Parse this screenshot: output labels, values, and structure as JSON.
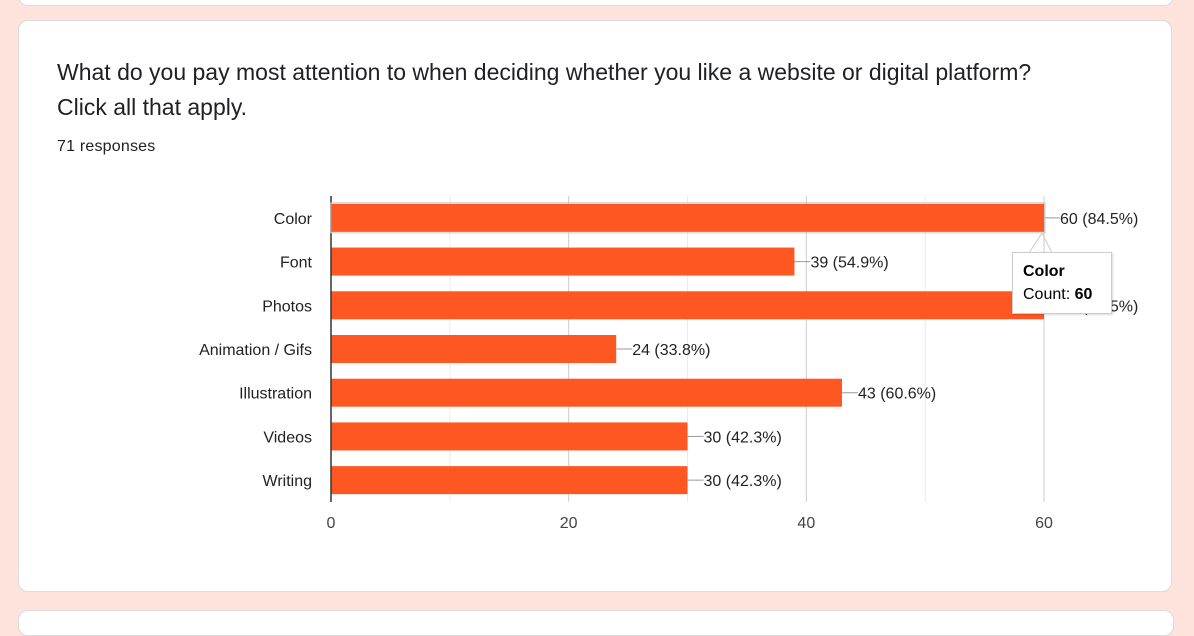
{
  "question": "What do you pay most attention to when deciding whether you like a website or digital platform? Click all that apply.",
  "responses": "71 responses",
  "chart_data": {
    "type": "bar",
    "orientation": "horizontal",
    "categories": [
      "Color",
      "Font",
      "Photos",
      "Animation / Gifs",
      "Illustration",
      "Videos",
      "Writing"
    ],
    "values": [
      60,
      39,
      60,
      24,
      43,
      30,
      30
    ],
    "value_labels": [
      "60 (84.5%)",
      "39 (54.9%)",
      "60 (84.5%)",
      "24 (33.8%)",
      "43 (60.6%)",
      "30 (42.3%)",
      "30 (42.3%)"
    ],
    "xlim": [
      0,
      60
    ],
    "xticks": [
      0,
      20,
      40,
      60
    ],
    "grid": true,
    "bar_color": "#ff5722",
    "legend": "none"
  },
  "tooltip": {
    "title": "Color",
    "count_label": "Count: ",
    "count_value": "60"
  }
}
